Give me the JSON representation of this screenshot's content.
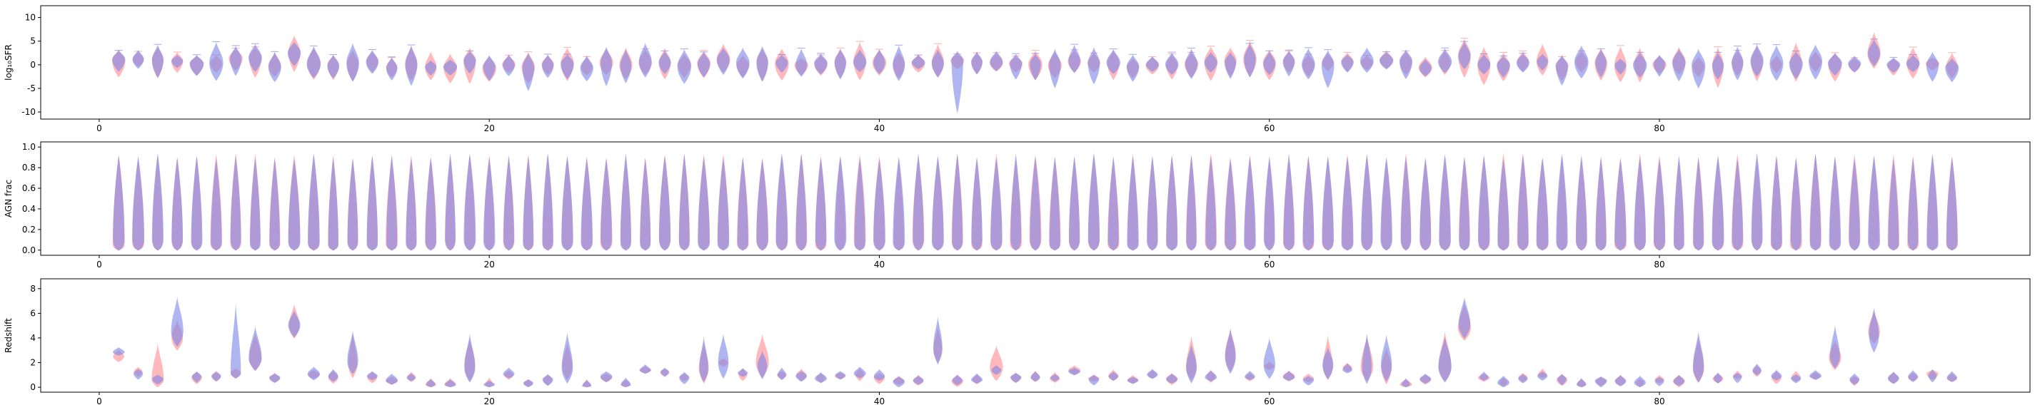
{
  "colors": {
    "series_a": "#ff8a8f",
    "series_b": "#7a84e8",
    "overlap": "#a46bc0"
  },
  "chart_data": [
    {
      "type": "violin",
      "panel": "top",
      "ylabel": "log₁₀SFR",
      "xlim": [
        -3,
        99
      ],
      "ylim": [
        -11.5,
        12.5
      ],
      "xticks": [
        0,
        20,
        40,
        60,
        80
      ],
      "yticks": [
        -10,
        -5,
        0,
        5,
        10
      ],
      "x": [
        1,
        2,
        3,
        4,
        5,
        6,
        7,
        8,
        9,
        10,
        11,
        12,
        13,
        14,
        15,
        16,
        17,
        18,
        19,
        20,
        21,
        22,
        23,
        24,
        25,
        26,
        27,
        28,
        29,
        30,
        31,
        32,
        33,
        34,
        35,
        36,
        37,
        38,
        39,
        40,
        41,
        42,
        43,
        44,
        45,
        46,
        47,
        48,
        49,
        50,
        51,
        52,
        53,
        54,
        55,
        56,
        57,
        58,
        59,
        60,
        61,
        62,
        63,
        64,
        65,
        66,
        67,
        68,
        69,
        70,
        71,
        72,
        73,
        74,
        75,
        76,
        77,
        78,
        79,
        80,
        81,
        82,
        83,
        84,
        85,
        86,
        87,
        88,
        89,
        90,
        91,
        92,
        93,
        94,
        95
      ],
      "medians": [
        1.0,
        1.2,
        0.9,
        1.0,
        0.4,
        0.3,
        1.2,
        1.6,
        -0.3,
        2.6,
        0.3,
        -0.1,
        0.4,
        0.6,
        -0.6,
        -0.1,
        -0.6,
        -0.4,
        1.0,
        -0.5,
        0.1,
        -0.5,
        -0.1,
        0.2,
        -0.6,
        0.5,
        -0.2,
        0.5,
        0.6,
        -0.1,
        0.5,
        1.0,
        0.2,
        0.7,
        0.5,
        0.2,
        0.3,
        0.5,
        0.6,
        0.3,
        0.2,
        0.3,
        0.5,
        1.0,
        0.6,
        0.4,
        0.2,
        0.3,
        -0.1,
        0.8,
        0.4,
        0.5,
        -0.3,
        0.1,
        -0.1,
        0.4,
        0.6,
        0.6,
        1.1,
        0.3,
        0.6,
        -0.1,
        0.3,
        0.7,
        0.6,
        0.9,
        0.8,
        -0.6,
        0.6,
        1.8,
        0.2,
        -0.2,
        0.5,
        0.6,
        -0.1,
        0.5,
        0.4,
        -0.2,
        0.0,
        0.3,
        0.4,
        -0.3,
        0.0,
        0.5,
        0.8,
        0.3,
        0.3,
        0.8,
        0.3,
        0.2,
        2.5,
        0.0,
        0.3,
        0.1,
        -0.4
      ],
      "spread": 1.5,
      "series": [
        {
          "name": ""
        },
        {
          "name": ""
        }
      ]
    },
    {
      "type": "violin",
      "panel": "middle",
      "ylabel": "AGN frac",
      "xlim": [
        -3,
        99
      ],
      "ylim": [
        -0.05,
        1.05
      ],
      "xticks": [
        0,
        20,
        40,
        60,
        80
      ],
      "yticks": [
        0.0,
        0.2,
        0.4,
        0.6,
        0.8,
        1.0
      ],
      "x": [
        1,
        2,
        3,
        4,
        5,
        6,
        7,
        8,
        9,
        10,
        11,
        12,
        13,
        14,
        15,
        16,
        17,
        18,
        19,
        20,
        21,
        22,
        23,
        24,
        25,
        26,
        27,
        28,
        29,
        30,
        31,
        32,
        33,
        34,
        35,
        36,
        37,
        38,
        39,
        40,
        41,
        42,
        43,
        44,
        45,
        46,
        47,
        48,
        49,
        50,
        51,
        52,
        53,
        54,
        55,
        56,
        57,
        58,
        59,
        60,
        61,
        62,
        63,
        64,
        65,
        66,
        67,
        68,
        69,
        70,
        71,
        72,
        73,
        74,
        75,
        76,
        77,
        78,
        79,
        80,
        81,
        82,
        83,
        84,
        85,
        86,
        87,
        88,
        89,
        90,
        91,
        92,
        93,
        94,
        95
      ],
      "range": [
        0.0,
        0.92
      ],
      "series": [
        {
          "name": ""
        },
        {
          "name": ""
        }
      ]
    },
    {
      "type": "violin",
      "panel": "bottom",
      "ylabel": "Redshift",
      "xlim": [
        -3,
        99
      ],
      "ylim": [
        -0.4,
        8.8
      ],
      "xticks": [
        0,
        20,
        40,
        60,
        80
      ],
      "yticks": [
        0,
        2,
        4,
        6,
        8
      ],
      "x": [
        1,
        2,
        3,
        4,
        5,
        6,
        7,
        8,
        9,
        10,
        11,
        12,
        13,
        14,
        15,
        16,
        17,
        18,
        19,
        20,
        21,
        22,
        23,
        24,
        25,
        26,
        27,
        28,
        29,
        30,
        31,
        32,
        33,
        34,
        35,
        36,
        37,
        38,
        39,
        40,
        41,
        42,
        43,
        44,
        45,
        46,
        47,
        48,
        49,
        50,
        51,
        52,
        53,
        54,
        55,
        56,
        57,
        58,
        59,
        60,
        61,
        62,
        63,
        64,
        65,
        66,
        67,
        68,
        69,
        70,
        71,
        72,
        73,
        74,
        75,
        76,
        77,
        78,
        79,
        80,
        81,
        82,
        83,
        84,
        85,
        86,
        87,
        88,
        89,
        90,
        91,
        92,
        93,
        94,
        95
      ],
      "medians": [
        2.5,
        1.3,
        0.6,
        4.0,
        0.8,
        0.9,
        1.2,
        2.3,
        0.7,
        5.0,
        1.0,
        0.8,
        1.8,
        0.8,
        0.5,
        0.8,
        0.2,
        0.2,
        1.8,
        0.2,
        1.0,
        0.3,
        0.6,
        1.7,
        0.1,
        0.8,
        0.2,
        1.4,
        1.2,
        0.8,
        1.6,
        2.0,
        1.0,
        2.0,
        1.0,
        1.0,
        0.8,
        0.9,
        1.0,
        0.8,
        0.5,
        0.5,
        3.0,
        0.5,
        0.6,
        1.6,
        0.8,
        0.8,
        0.7,
        1.4,
        0.7,
        0.9,
        0.6,
        1.0,
        0.7,
        1.6,
        0.9,
        2.6,
        0.8,
        1.7,
        0.9,
        0.7,
        1.6,
        1.6,
        1.6,
        1.6,
        0.2,
        0.6,
        1.6,
        4.8,
        0.8,
        0.4,
        0.8,
        1.0,
        0.6,
        0.2,
        0.5,
        0.5,
        0.4,
        0.6,
        0.5,
        1.5,
        0.7,
        0.9,
        1.3,
        0.8,
        0.8,
        0.9,
        2.4,
        0.6,
        4.5,
        0.7,
        0.8,
        1.1,
        0.7
      ],
      "series": [
        {
          "name": ""
        },
        {
          "name": ""
        }
      ]
    }
  ]
}
